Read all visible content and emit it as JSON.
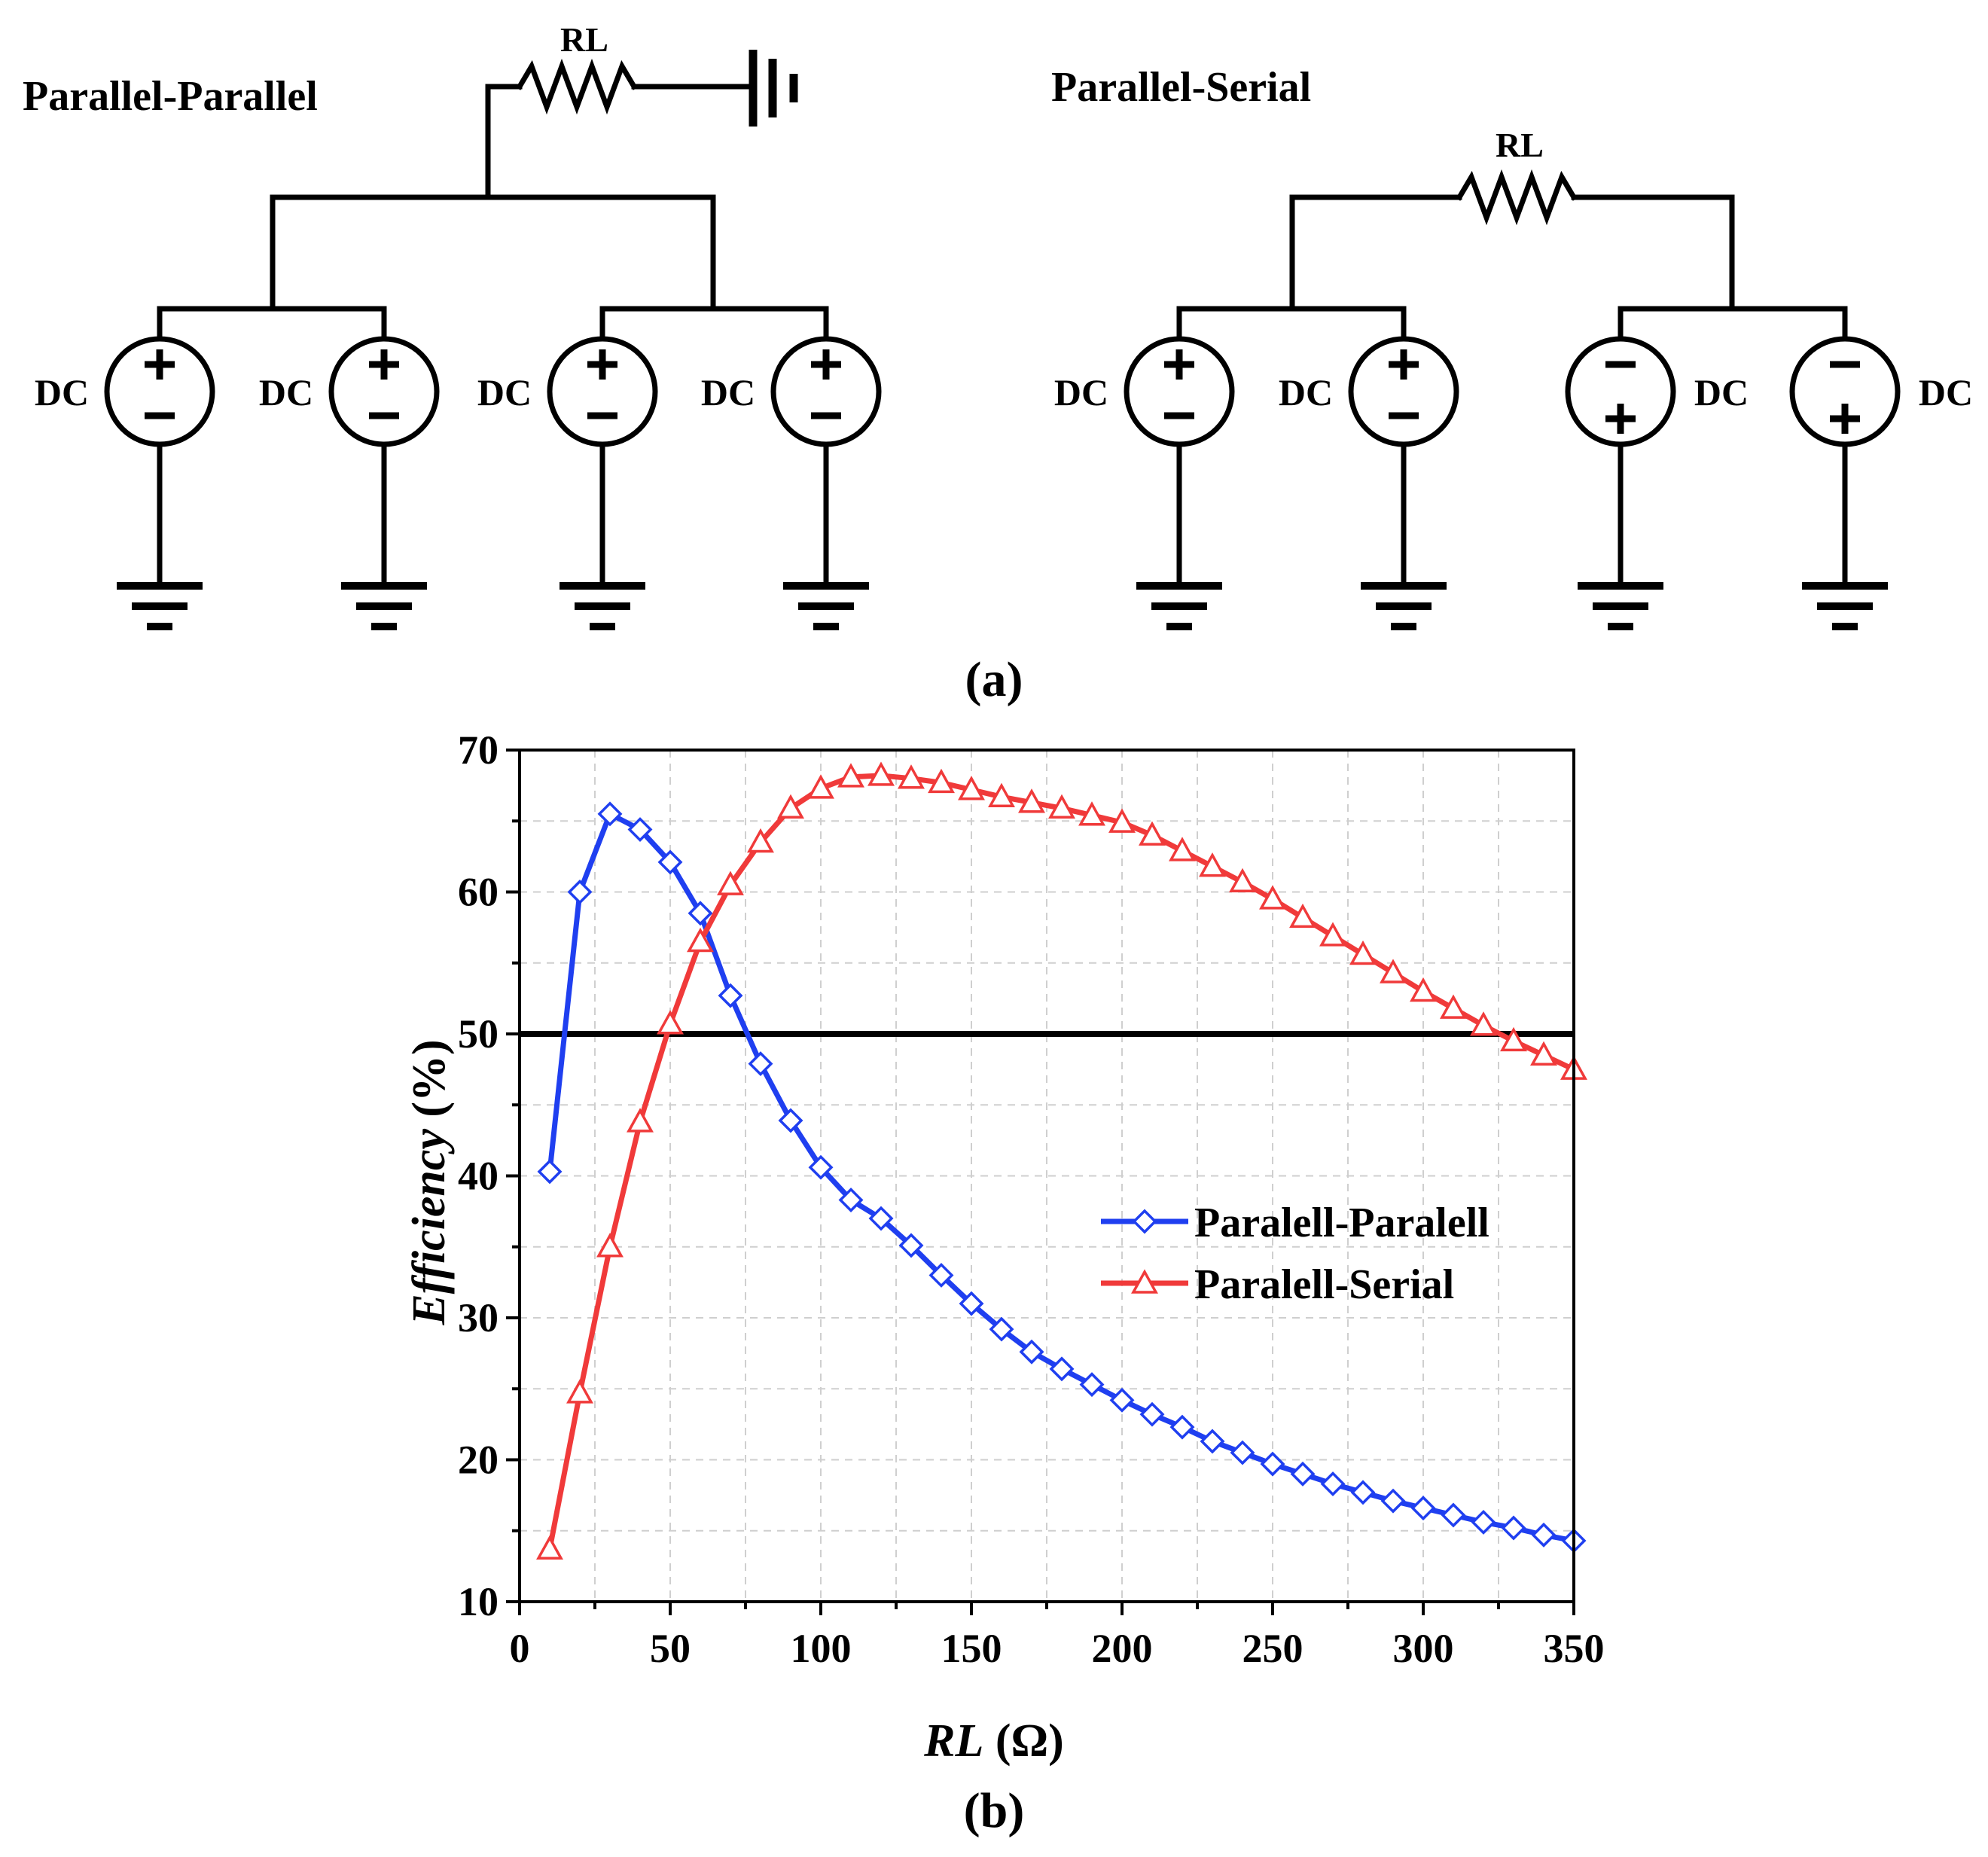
{
  "circuits": {
    "left": {
      "title": "Parallel-Parallel",
      "resistor_label": "RL",
      "source_label": "DC"
    },
    "right": {
      "title": "Parallel-Serial",
      "resistor_label": "RL",
      "source_label": "DC"
    },
    "caption": "(a)"
  },
  "chart_caption": "(b)",
  "chart_data": {
    "type": "line",
    "title": "",
    "xlabel_italic": "RL",
    "xlabel_unit": " (Ω)",
    "ylabel_italic": "Efficiency",
    "ylabel_unit": " (%)",
    "xlim": [
      0,
      350
    ],
    "ylim": [
      10,
      70
    ],
    "xticks": [
      0,
      50,
      100,
      150,
      200,
      250,
      300,
      350
    ],
    "yticks": [
      10,
      20,
      30,
      40,
      50,
      60,
      70
    ],
    "grid": true,
    "legend_position": "center-right",
    "reference_line": {
      "y": 50,
      "color": "#000000"
    },
    "x": [
      10,
      20,
      30,
      40,
      50,
      60,
      70,
      80,
      90,
      100,
      110,
      120,
      130,
      140,
      150,
      160,
      170,
      180,
      190,
      200,
      210,
      220,
      230,
      240,
      250,
      260,
      270,
      280,
      290,
      300,
      310,
      320,
      330,
      340,
      350
    ],
    "series": [
      {
        "name": "Paralell-Paralell",
        "color": "#1f3ff0",
        "marker": "diamond",
        "values": [
          40.3,
          60.0,
          65.5,
          64.4,
          62.1,
          58.5,
          52.7,
          47.9,
          43.9,
          40.6,
          38.3,
          37.0,
          35.1,
          33.0,
          31.0,
          29.2,
          27.6,
          26.4,
          25.3,
          24.2,
          23.2,
          22.3,
          21.3,
          20.5,
          19.7,
          19.0,
          18.3,
          17.7,
          17.1,
          16.6,
          16.1,
          15.6,
          15.2,
          14.7,
          14.3
        ]
      },
      {
        "name": "Paralell-Serial",
        "color": "#f03a3a",
        "marker": "triangle",
        "values": [
          13.7,
          24.7,
          35.0,
          43.8,
          50.7,
          56.5,
          60.5,
          63.5,
          65.9,
          67.3,
          68.1,
          68.2,
          68.0,
          67.7,
          67.2,
          66.7,
          66.3,
          65.9,
          65.4,
          64.9,
          64.0,
          62.9,
          61.8,
          60.7,
          59.5,
          58.2,
          56.9,
          55.6,
          54.3,
          53.0,
          51.8,
          50.6,
          49.5,
          48.5,
          47.5
        ]
      }
    ]
  }
}
